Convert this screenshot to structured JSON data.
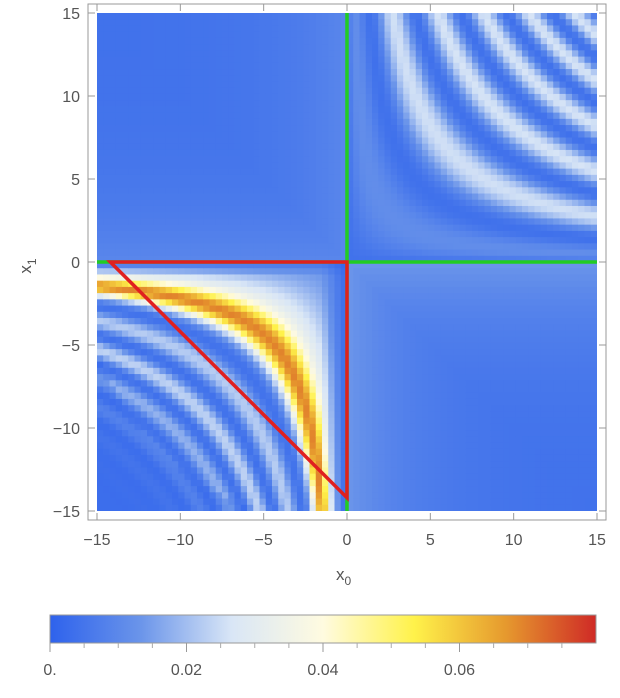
{
  "chart_data": [
    {
      "type": "heatmap",
      "title": "",
      "xlabel": "x",
      "xlabel_sub": "0",
      "ylabel": "x",
      "ylabel_sub": "1",
      "xlim": [
        -15,
        15
      ],
      "ylim": [
        -15,
        15
      ],
      "x_ticks": [
        -15,
        -10,
        -5,
        0,
        5,
        10,
        15
      ],
      "x_tick_labels": [
        "−15",
        "−10",
        "−5",
        "0",
        "5",
        "10",
        "15"
      ],
      "y_ticks": [
        15,
        10,
        5,
        0,
        -5,
        -10,
        -15
      ],
      "y_tick_labels": [
        "15",
        "10",
        "5",
        "0",
        "−5",
        "−10",
        "−15"
      ],
      "grid": false,
      "colormap": [
        "#2e62ec",
        "#6b95ea",
        "#d9e6f6",
        "#fffbe0",
        "#fff24a",
        "#e69a2e",
        "#cf2a26"
      ],
      "background_color": "#3a6ce8",
      "overlays": [
        {
          "kind": "line",
          "color": "#22cc22",
          "points": [
            [
              0,
              -15
            ],
            [
              0,
              15
            ]
          ]
        },
        {
          "kind": "line",
          "color": "#22cc22",
          "points": [
            [
              -15,
              0
            ],
            [
              15,
              0
            ]
          ]
        },
        {
          "kind": "polygon",
          "color": "#e02020",
          "points": [
            [
              -14.2,
              0
            ],
            [
              0,
              0
            ],
            [
              0,
              -14.2
            ]
          ]
        }
      ]
    },
    {
      "type": "colorbar",
      "range": [
        0,
        0.08
      ],
      "ticks": [
        0,
        0.02,
        0.04,
        0.06
      ],
      "tick_labels": [
        "0.",
        "0.02",
        "0.04",
        "0.06"
      ],
      "minor_ticks": [
        0.005,
        0.01,
        0.015,
        0.025,
        0.03,
        0.035,
        0.045,
        0.05,
        0.055,
        0.065,
        0.07,
        0.075
      ]
    }
  ]
}
